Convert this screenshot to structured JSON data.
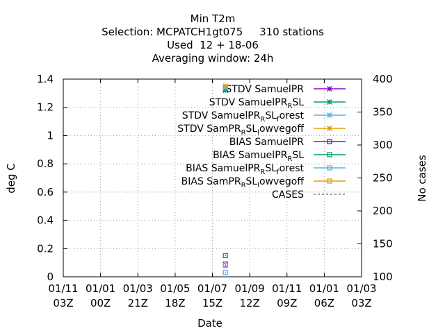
{
  "chart_data": {
    "type": "scatter",
    "title_lines": [
      "Min T2m",
      "Selection: MCPATCH1gt075     310 stations",
      "Used  12 + 18-06",
      "Averaging window: 24h"
    ],
    "xlabel": "Date",
    "ylabel": "deg C",
    "y2label": "No cases",
    "x_ticks": [
      [
        "01/11",
        "03Z"
      ],
      [
        "01/01",
        "00Z"
      ],
      [
        "01/03",
        "21Z"
      ],
      [
        "01/05",
        "18Z"
      ],
      [
        "01/07",
        "15Z"
      ],
      [
        "01/09",
        "12Z"
      ],
      [
        "01/11",
        "09Z"
      ],
      [
        "01/01",
        "06Z"
      ],
      [
        "01/03",
        "03Z"
      ]
    ],
    "y_ticks": [
      "0",
      "0.2",
      "0.4",
      "0.6",
      "0.8",
      "1",
      "1.2",
      "1.4"
    ],
    "y_range": [
      0,
      1.4
    ],
    "y2_ticks": [
      "100",
      "150",
      "200",
      "250",
      "300",
      "350",
      "400"
    ],
    "y2_range": [
      100,
      400
    ],
    "grid": true,
    "legend_position": "top-right",
    "series": [
      {
        "name": "STDV SamuelPR",
        "parts": [
          [
            "STDV SamuelPR",
            ""
          ]
        ],
        "color": "#9400d3",
        "marker": "star",
        "values": [
          1.33
        ]
      },
      {
        "name": "STDV SamuelPR_RSL",
        "parts": [
          [
            "STDV SamuelPR",
            ""
          ],
          [
            "R",
            "sub"
          ],
          [
            "SL",
            ""
          ]
        ],
        "color": "#009e73",
        "marker": "star",
        "values": [
          1.32
        ]
      },
      {
        "name": "STDV SamuelPR_RSL_forest",
        "parts": [
          [
            "STDV SamuelPR",
            ""
          ],
          [
            "R",
            "sub"
          ],
          [
            "SL",
            ""
          ],
          [
            "f",
            "sub"
          ],
          [
            "orest",
            ""
          ]
        ],
        "color": "#56b4e9",
        "marker": "star",
        "values": [
          1.34
        ]
      },
      {
        "name": "STDV SamPR_RSL_lowvegoff",
        "parts": [
          [
            "STDV SamPR",
            ""
          ],
          [
            "R",
            "sub"
          ],
          [
            "SL",
            ""
          ],
          [
            "l",
            "sub"
          ],
          [
            "owvegoff",
            ""
          ]
        ],
        "color": "#e69f00",
        "marker": "star",
        "values": [
          1.35
        ]
      },
      {
        "name": "BIAS SamuelPR",
        "parts": [
          [
            "BIAS SamuelPR",
            ""
          ]
        ],
        "color": "#9400d3",
        "marker": "square",
        "values": [
          0.09
        ]
      },
      {
        "name": "BIAS SamuelPR_RSL",
        "parts": [
          [
            "BIAS SamuelPR",
            ""
          ],
          [
            "R",
            "sub"
          ],
          [
            "SL",
            ""
          ]
        ],
        "color": "#009e73",
        "marker": "square",
        "values": [
          0.15
        ]
      },
      {
        "name": "BIAS SamuelPR_RSL_forest",
        "parts": [
          [
            "BIAS SamuelPR",
            ""
          ],
          [
            "R",
            "sub"
          ],
          [
            "SL",
            ""
          ],
          [
            "f",
            "sub"
          ],
          [
            "orest",
            ""
          ]
        ],
        "color": "#56b4e9",
        "marker": "square",
        "values": [
          0.03
        ]
      },
      {
        "name": "BIAS SamPR_RSL_lowvegoff",
        "parts": [
          [
            "BIAS SamPR",
            ""
          ],
          [
            "R",
            "sub"
          ],
          [
            "SL",
            ""
          ],
          [
            "l",
            "sub"
          ],
          [
            "owvegoff",
            ""
          ]
        ],
        "color": "#e69f00",
        "marker": "square",
        "values": [
          0.08
        ]
      },
      {
        "name": "CASES",
        "parts": [
          [
            "CASES",
            ""
          ]
        ],
        "color": "#808080",
        "marker": "dash",
        "values": []
      }
    ],
    "data_x_tick_fraction": 4.35
  }
}
